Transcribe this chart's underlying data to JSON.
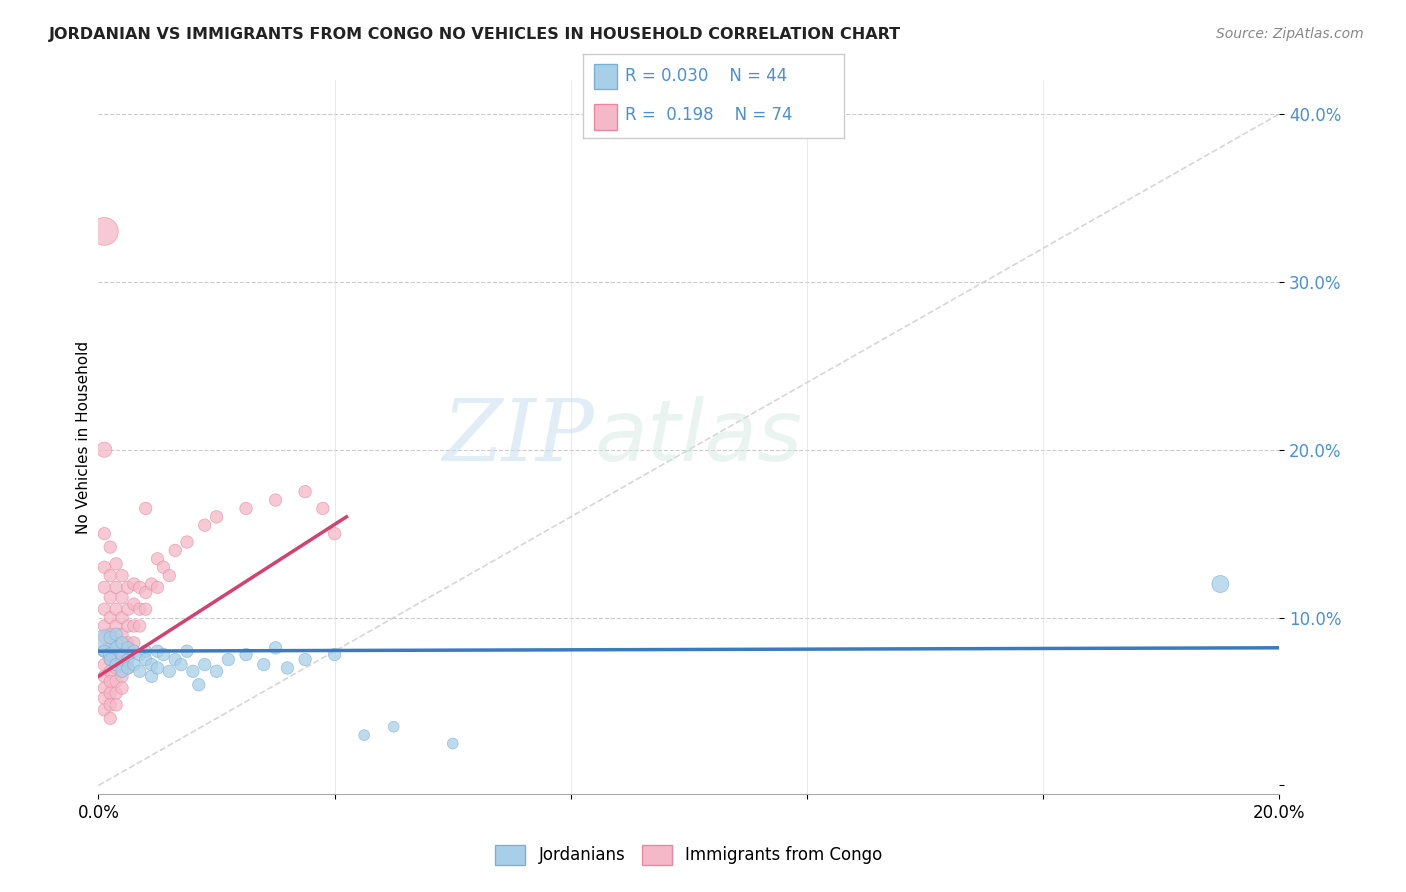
{
  "title": "JORDANIAN VS IMMIGRANTS FROM CONGO NO VEHICLES IN HOUSEHOLD CORRELATION CHART",
  "source": "Source: ZipAtlas.com",
  "ylabel": "No Vehicles in Household",
  "xlim": [
    0.0,
    0.2
  ],
  "ylim": [
    -0.005,
    0.42
  ],
  "yticks": [
    0.0,
    0.1,
    0.2,
    0.3,
    0.4
  ],
  "ytick_labels": [
    "",
    "10.0%",
    "20.0%",
    "30.0%",
    "40.0%"
  ],
  "xtick_labels": [
    "0.0%",
    "20.0%"
  ],
  "watermark_zip": "ZIP",
  "watermark_atlas": "atlas",
  "blue_R": 0.03,
  "blue_N": 44,
  "pink_R": 0.198,
  "pink_N": 74,
  "blue_color": "#a8cfe8",
  "blue_edge": "#7bafd4",
  "pink_color": "#f4b8c8",
  "pink_edge": "#e888a0",
  "trend_blue": "#3a7abf",
  "trend_pink": "#d44070",
  "diagonal_color": "#cccccc",
  "blue_points": [
    [
      0.001,
      0.085
    ],
    [
      0.001,
      0.08
    ],
    [
      0.002,
      0.078
    ],
    [
      0.002,
      0.088
    ],
    [
      0.002,
      0.075
    ],
    [
      0.003,
      0.082
    ],
    [
      0.003,
      0.072
    ],
    [
      0.003,
      0.09
    ],
    [
      0.004,
      0.078
    ],
    [
      0.004,
      0.068
    ],
    [
      0.004,
      0.085
    ],
    [
      0.005,
      0.075
    ],
    [
      0.005,
      0.07
    ],
    [
      0.005,
      0.082
    ],
    [
      0.006,
      0.08
    ],
    [
      0.006,
      0.072
    ],
    [
      0.007,
      0.078
    ],
    [
      0.007,
      0.068
    ],
    [
      0.008,
      0.08
    ],
    [
      0.008,
      0.075
    ],
    [
      0.009,
      0.072
    ],
    [
      0.009,
      0.065
    ],
    [
      0.01,
      0.08
    ],
    [
      0.01,
      0.07
    ],
    [
      0.011,
      0.078
    ],
    [
      0.012,
      0.068
    ],
    [
      0.013,
      0.075
    ],
    [
      0.014,
      0.072
    ],
    [
      0.015,
      0.08
    ],
    [
      0.016,
      0.068
    ],
    [
      0.017,
      0.06
    ],
    [
      0.018,
      0.072
    ],
    [
      0.02,
      0.068
    ],
    [
      0.022,
      0.075
    ],
    [
      0.025,
      0.078
    ],
    [
      0.028,
      0.072
    ],
    [
      0.03,
      0.082
    ],
    [
      0.032,
      0.07
    ],
    [
      0.035,
      0.075
    ],
    [
      0.04,
      0.078
    ],
    [
      0.045,
      0.03
    ],
    [
      0.05,
      0.035
    ],
    [
      0.06,
      0.025
    ],
    [
      0.19,
      0.12
    ]
  ],
  "blue_sizes": [
    350,
    80,
    100,
    80,
    80,
    80,
    80,
    80,
    80,
    80,
    80,
    80,
    80,
    80,
    80,
    80,
    80,
    80,
    80,
    80,
    80,
    80,
    80,
    80,
    80,
    80,
    80,
    80,
    80,
    80,
    80,
    80,
    80,
    80,
    80,
    80,
    80,
    80,
    80,
    80,
    60,
    60,
    60,
    150
  ],
  "pink_points": [
    [
      0.001,
      0.33
    ],
    [
      0.001,
      0.2
    ],
    [
      0.001,
      0.15
    ],
    [
      0.001,
      0.13
    ],
    [
      0.001,
      0.118
    ],
    [
      0.001,
      0.105
    ],
    [
      0.001,
      0.095
    ],
    [
      0.001,
      0.088
    ],
    [
      0.001,
      0.08
    ],
    [
      0.001,
      0.072
    ],
    [
      0.001,
      0.065
    ],
    [
      0.001,
      0.058
    ],
    [
      0.001,
      0.052
    ],
    [
      0.001,
      0.045
    ],
    [
      0.002,
      0.142
    ],
    [
      0.002,
      0.125
    ],
    [
      0.002,
      0.112
    ],
    [
      0.002,
      0.1
    ],
    [
      0.002,
      0.09
    ],
    [
      0.002,
      0.082
    ],
    [
      0.002,
      0.075
    ],
    [
      0.002,
      0.068
    ],
    [
      0.002,
      0.062
    ],
    [
      0.002,
      0.055
    ],
    [
      0.002,
      0.048
    ],
    [
      0.002,
      0.04
    ],
    [
      0.003,
      0.132
    ],
    [
      0.003,
      0.118
    ],
    [
      0.003,
      0.105
    ],
    [
      0.003,
      0.095
    ],
    [
      0.003,
      0.085
    ],
    [
      0.003,
      0.078
    ],
    [
      0.003,
      0.07
    ],
    [
      0.003,
      0.062
    ],
    [
      0.003,
      0.055
    ],
    [
      0.003,
      0.048
    ],
    [
      0.004,
      0.125
    ],
    [
      0.004,
      0.112
    ],
    [
      0.004,
      0.1
    ],
    [
      0.004,
      0.09
    ],
    [
      0.004,
      0.08
    ],
    [
      0.004,
      0.072
    ],
    [
      0.004,
      0.065
    ],
    [
      0.004,
      0.058
    ],
    [
      0.005,
      0.118
    ],
    [
      0.005,
      0.105
    ],
    [
      0.005,
      0.095
    ],
    [
      0.005,
      0.085
    ],
    [
      0.005,
      0.078
    ],
    [
      0.005,
      0.07
    ],
    [
      0.006,
      0.12
    ],
    [
      0.006,
      0.108
    ],
    [
      0.006,
      0.095
    ],
    [
      0.006,
      0.085
    ],
    [
      0.007,
      0.118
    ],
    [
      0.007,
      0.105
    ],
    [
      0.007,
      0.095
    ],
    [
      0.008,
      0.115
    ],
    [
      0.008,
      0.105
    ],
    [
      0.009,
      0.12
    ],
    [
      0.01,
      0.135
    ],
    [
      0.01,
      0.118
    ],
    [
      0.011,
      0.13
    ],
    [
      0.012,
      0.125
    ],
    [
      0.013,
      0.14
    ],
    [
      0.015,
      0.145
    ],
    [
      0.018,
      0.155
    ],
    [
      0.02,
      0.16
    ],
    [
      0.025,
      0.165
    ],
    [
      0.03,
      0.17
    ],
    [
      0.035,
      0.175
    ],
    [
      0.038,
      0.165
    ],
    [
      0.04,
      0.15
    ],
    [
      0.008,
      0.165
    ]
  ],
  "pink_sizes": [
    400,
    120,
    80,
    80,
    80,
    80,
    80,
    80,
    80,
    80,
    80,
    80,
    80,
    80,
    80,
    80,
    80,
    80,
    80,
    80,
    80,
    80,
    80,
    80,
    80,
    80,
    80,
    80,
    80,
    80,
    80,
    80,
    80,
    80,
    80,
    80,
    80,
    80,
    80,
    80,
    80,
    80,
    80,
    80,
    80,
    80,
    80,
    80,
    80,
    80,
    80,
    80,
    80,
    80,
    80,
    80,
    80,
    80,
    80,
    80,
    80,
    80,
    80,
    80,
    80,
    80,
    80,
    80,
    80,
    80,
    80,
    80,
    80,
    80
  ],
  "blue_trend_x": [
    0.0,
    0.2
  ],
  "blue_trend_y": [
    0.08,
    0.082
  ],
  "pink_trend_x": [
    0.0,
    0.042
  ],
  "pink_trend_y": [
    0.065,
    0.16
  ]
}
